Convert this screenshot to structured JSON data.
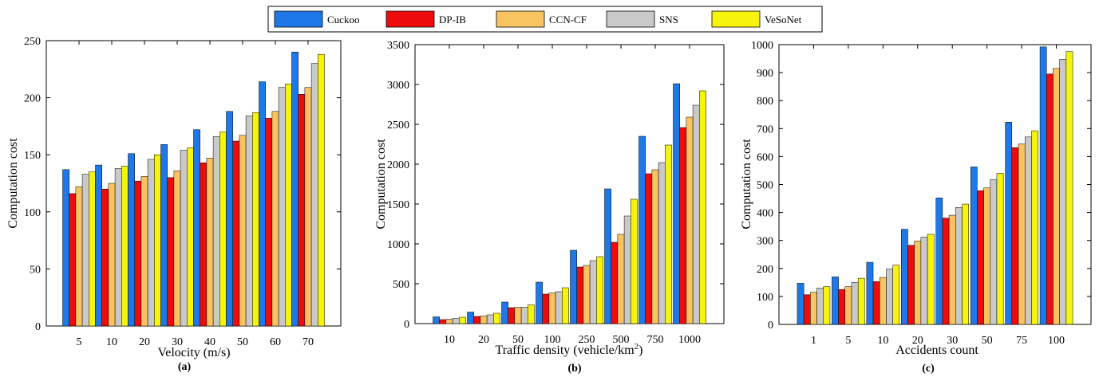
{
  "legend": [
    {
      "name": "Cuckoo",
      "color": "#1f78e8"
    },
    {
      "name": "DP-IB",
      "color": "#ee0b0b"
    },
    {
      "name": "CCN-CF",
      "color": "#f9c460"
    },
    {
      "name": "SNS",
      "color": "#c9c9c9"
    },
    {
      "name": "VeSoNet",
      "color": "#f6f30d"
    }
  ],
  "chart_data": [
    {
      "type": "bar",
      "panel_label": "(a)",
      "xlabel": "Velocity (m/s)",
      "ylabel": "Computation cost",
      "ylim": [
        0,
        250
      ],
      "yticks": [
        0,
        50,
        100,
        150,
        200,
        250
      ],
      "categories": [
        "5",
        "10",
        "20",
        "30",
        "40",
        "50",
        "60",
        "70"
      ],
      "series": [
        {
          "name": "Cuckoo",
          "values": [
            137,
            141,
            151,
            159,
            172,
            188,
            214,
            240
          ]
        },
        {
          "name": "DP-IB",
          "values": [
            116,
            120,
            127,
            130,
            143,
            162,
            182,
            203
          ]
        },
        {
          "name": "CCN-CF",
          "values": [
            122,
            125,
            131,
            136,
            147,
            167,
            188,
            209
          ]
        },
        {
          "name": "SNS",
          "values": [
            133,
            138,
            146,
            154,
            166,
            184,
            209,
            230
          ]
        },
        {
          "name": "VeSoNet",
          "values": [
            135,
            140,
            150,
            156,
            170,
            187,
            212,
            238
          ]
        }
      ]
    },
    {
      "type": "bar",
      "panel_label": "(b)",
      "xlabel": "Traffic density (vehicle/km",
      "xlabel_sup": "2",
      "xlabel_end": ")",
      "ylabel": "Computation cost",
      "ylim": [
        0,
        3500
      ],
      "yticks": [
        0,
        500,
        1000,
        1500,
        2000,
        2500,
        3000,
        3500
      ],
      "categories": [
        "10",
        "20",
        "50",
        "100",
        "250",
        "500",
        "750",
        "1000"
      ],
      "series": [
        {
          "name": "Cuckoo",
          "values": [
            85,
            145,
            270,
            520,
            920,
            1690,
            2350,
            3010
          ]
        },
        {
          "name": "DP-IB",
          "values": [
            50,
            90,
            200,
            370,
            710,
            1020,
            1880,
            2460
          ]
        },
        {
          "name": "CCN-CF",
          "values": [
            55,
            95,
            205,
            385,
            730,
            1120,
            1930,
            2590
          ]
        },
        {
          "name": "SNS",
          "values": [
            65,
            110,
            205,
            400,
            790,
            1350,
            2020,
            2740
          ]
        },
        {
          "name": "VeSoNet",
          "values": [
            80,
            130,
            235,
            450,
            840,
            1560,
            2240,
            2920
          ]
        }
      ]
    },
    {
      "type": "bar",
      "panel_label": "(c)",
      "xlabel": "Accidents count",
      "ylabel": "Computation cost",
      "ylim": [
        0,
        1000
      ],
      "yticks": [
        0,
        100,
        200,
        300,
        400,
        500,
        600,
        700,
        800,
        900,
        1000
      ],
      "categories": [
        "1",
        "5",
        "10",
        "20",
        "30",
        "50",
        "75",
        "100"
      ],
      "series": [
        {
          "name": "Cuckoo",
          "values": [
            147,
            170,
            222,
            340,
            452,
            563,
            723,
            992
          ]
        },
        {
          "name": "DP-IB",
          "values": [
            106,
            125,
            153,
            283,
            380,
            478,
            632,
            895
          ]
        },
        {
          "name": "CCN-CF",
          "values": [
            115,
            135,
            168,
            298,
            390,
            488,
            645,
            915
          ]
        },
        {
          "name": "SNS",
          "values": [
            130,
            150,
            198,
            312,
            418,
            518,
            670,
            948
          ]
        },
        {
          "name": "VeSoNet",
          "values": [
            135,
            165,
            212,
            322,
            430,
            540,
            692,
            975
          ]
        }
      ]
    }
  ]
}
